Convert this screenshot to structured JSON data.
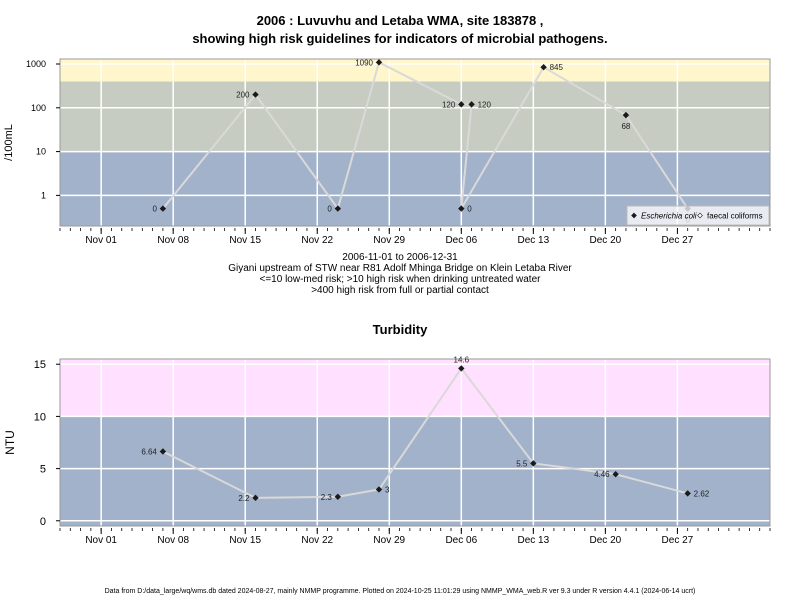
{
  "chart_data": [
    {
      "type": "scatter",
      "title_lines": [
        "2006 : Luvuvhu and Letaba WMA, site 183878 ,",
        "showing high risk guidelines for indicators of microbial pathogens."
      ],
      "ylabel": "/100mL",
      "y_scale": "log",
      "ylim": [
        0.2,
        1300
      ],
      "xlim": [
        "2006-10-28",
        "2007-01-05"
      ],
      "x_tick_labels": [
        "Nov 01",
        "Nov 08",
        "Nov 15",
        "Nov 22",
        "Nov 29",
        "Dec 06",
        "Dec 13",
        "Dec 20",
        "Dec 27"
      ],
      "x_tick_dates": [
        "2006-11-01",
        "2006-11-08",
        "2006-11-15",
        "2006-11-22",
        "2006-11-29",
        "2006-12-06",
        "2006-12-13",
        "2006-12-20",
        "2006-12-27"
      ],
      "y_tick_values": [
        1,
        10,
        100,
        1000
      ],
      "y_tick_labels": [
        "1",
        "10",
        "100",
        "1000"
      ],
      "bands": [
        {
          "from": 0.2,
          "to": 10,
          "color": "#a2b2ca"
        },
        {
          "from": 10,
          "to": 400,
          "color": "#c6ccc2"
        },
        {
          "from": 400,
          "to": 1300,
          "color": "#fff6cb"
        }
      ],
      "grid": true,
      "line_color": "#d9d9d9",
      "points": [
        {
          "x": "2006-11-07",
          "y": 0.5,
          "label": "0",
          "label_side": "left",
          "series": "Escherichia coli"
        },
        {
          "x": "2006-11-16",
          "y": 200,
          "label": "200",
          "label_side": "left",
          "series": "Escherichia coli"
        },
        {
          "x": "2006-11-24",
          "y": 0.5,
          "label": "0",
          "label_side": "left",
          "series": "Escherichia coli"
        },
        {
          "x": "2006-11-28",
          "y": 1090,
          "label": "1090",
          "label_side": "left",
          "series": "Escherichia coli"
        },
        {
          "x": "2006-12-06",
          "y": 120,
          "label": "120",
          "label_side": "left",
          "series": "Escherichia coli"
        },
        {
          "x": "2006-12-07",
          "y": 120,
          "label": "120",
          "label_side": "right",
          "series": "Escherichia coli"
        },
        {
          "x": "2006-12-06",
          "y": 0.5,
          "label": "0",
          "label_side": "right",
          "series": "Escherichia coli"
        },
        {
          "x": "2006-12-14",
          "y": 845,
          "label": "845",
          "label_side": "right",
          "series": "Escherichia coli"
        },
        {
          "x": "2006-12-22",
          "y": 68,
          "label": "68",
          "label_side": "below",
          "series": "Escherichia coli"
        },
        {
          "x": "2006-12-28",
          "y": 0.5,
          "label": "0",
          "label_side": "below",
          "series": "Escherichia coli"
        }
      ],
      "legend": {
        "position": "bottom-right",
        "items": [
          {
            "name": "Escherichia coli",
            "marker": "diamond-filled",
            "italic": true
          },
          {
            "name": "faecal coliforms",
            "marker": "diamond-open",
            "italic": false
          }
        ]
      },
      "subtitle_lines": [
        "2006-11-01 to 2006-12-31",
        "Giyani upstream of STW near R81 Adolf Mhinga Bridge on Klein Letaba River",
        "<=10 low-med risk; >10 high risk when drinking untreated water",
        ">400 high risk from full or partial contact"
      ]
    },
    {
      "type": "line",
      "title": "Turbidity",
      "ylabel": "NTU",
      "y_scale": "linear",
      "ylim": [
        -0.5,
        15.5
      ],
      "xlim": [
        "2006-10-28",
        "2007-01-05"
      ],
      "x_tick_labels": [
        "Nov 01",
        "Nov 08",
        "Nov 15",
        "Nov 22",
        "Nov 29",
        "Dec 06",
        "Dec 13",
        "Dec 20",
        "Dec 27"
      ],
      "x_tick_dates": [
        "2006-11-01",
        "2006-11-08",
        "2006-11-15",
        "2006-11-22",
        "2006-11-29",
        "2006-12-06",
        "2006-12-13",
        "2006-12-20",
        "2006-12-27"
      ],
      "y_tick_values": [
        0,
        5,
        10,
        15
      ],
      "y_tick_labels": [
        "0",
        "5",
        "10",
        "15"
      ],
      "bands": [
        {
          "from": -0.5,
          "to": 10,
          "color": "#a2b2ca"
        },
        {
          "from": 10,
          "to": 15.5,
          "color": "#ffe0ff"
        }
      ],
      "grid": true,
      "line_color": "#d9d9d9",
      "points": [
        {
          "x": "2006-11-07",
          "y": 6.64,
          "label": "6.64",
          "label_side": "left"
        },
        {
          "x": "2006-11-16",
          "y": 2.2,
          "label": "2.2",
          "label_side": "left"
        },
        {
          "x": "2006-11-24",
          "y": 2.3,
          "label": "2.3",
          "label_side": "left"
        },
        {
          "x": "2006-11-28",
          "y": 3,
          "label": "3",
          "label_side": "right"
        },
        {
          "x": "2006-12-06",
          "y": 14.6,
          "label": "14.6",
          "label_side": "above"
        },
        {
          "x": "2006-12-13",
          "y": 5.5,
          "label": "5.5",
          "label_side": "left"
        },
        {
          "x": "2006-12-21",
          "y": 4.46,
          "label": "4.46",
          "label_side": "left"
        },
        {
          "x": "2006-12-28",
          "y": 2.62,
          "label": "2.62",
          "label_side": "right"
        }
      ]
    }
  ],
  "footer": "Data from D:/data_large/wq/wms.db dated 2024-08-27, mainly NMMP programme. Plotted on 2024-10-25 11:01:29 using NMMP_WMA_web.R ver 9.3 under R version 4.4.1 (2024-06-14 ucrt)"
}
